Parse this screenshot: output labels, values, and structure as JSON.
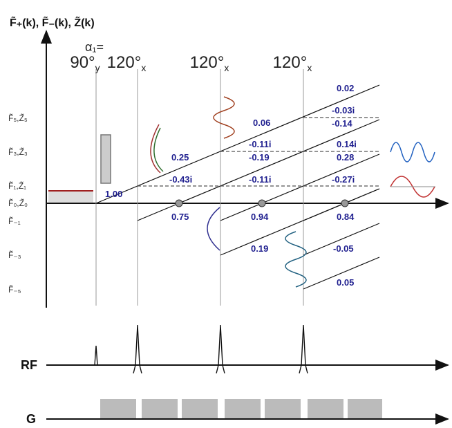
{
  "axis_title": "F̃₊(k), F̃₋(k), Z̃(k)",
  "y_labels": [
    "F̃₅,Z̃₅",
    "F̃₃,Z̃₃",
    "F̃₁,Z̃₁",
    "F̃₀,Z̃₀",
    "F̃₋₁",
    "F̃₋₃",
    "F̃₋₅"
  ],
  "flip_angle_label": "α₁=",
  "pulses": [
    {
      "angle": "90°",
      "axis": "y"
    },
    {
      "angle": "120°",
      "axis": "x"
    },
    {
      "angle": "120°",
      "axis": "x"
    },
    {
      "angle": "120°",
      "axis": "x"
    }
  ],
  "state_labels": [
    "1.00",
    "0.25",
    "-0.43i",
    "0.75",
    "0.06",
    "-0.11i",
    "-0.19",
    "-0.11i",
    "0.94",
    "0.19",
    "0.02",
    "-0.03i",
    "-0.14",
    "0.14i",
    "0.28",
    "-0.27i",
    "0.84",
    "-0.05",
    "0.05"
  ],
  "rf_label": "RF",
  "gradient_label": "G"
}
